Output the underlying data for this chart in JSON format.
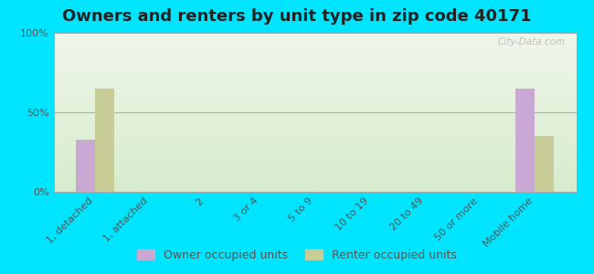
{
  "title": "Owners and renters by unit type in zip code 40171",
  "categories": [
    "1, detached",
    "1, attached",
    "2",
    "3 or 4",
    "5 to 9",
    "10 to 19",
    "20 to 49",
    "50 or more",
    "Mobile home"
  ],
  "owner_values": [
    33,
    0,
    0,
    0,
    0,
    0,
    0,
    0,
    65
  ],
  "renter_values": [
    65,
    0,
    0,
    0,
    0,
    0,
    0,
    0,
    35
  ],
  "owner_color": "#c9a8d4",
  "renter_color": "#c8cc96",
  "background_color": "#00e5ff",
  "plot_bg_top": "#f0f5ea",
  "plot_bg_bottom": "#d6eccc",
  "ylabel_ticks": [
    0,
    50,
    100
  ],
  "ylabel_labels": [
    "0%",
    "50%",
    "100%"
  ],
  "bar_width": 0.35,
  "title_fontsize": 13,
  "tick_fontsize": 8,
  "legend_fontsize": 9,
  "watermark": "City-Data.com"
}
